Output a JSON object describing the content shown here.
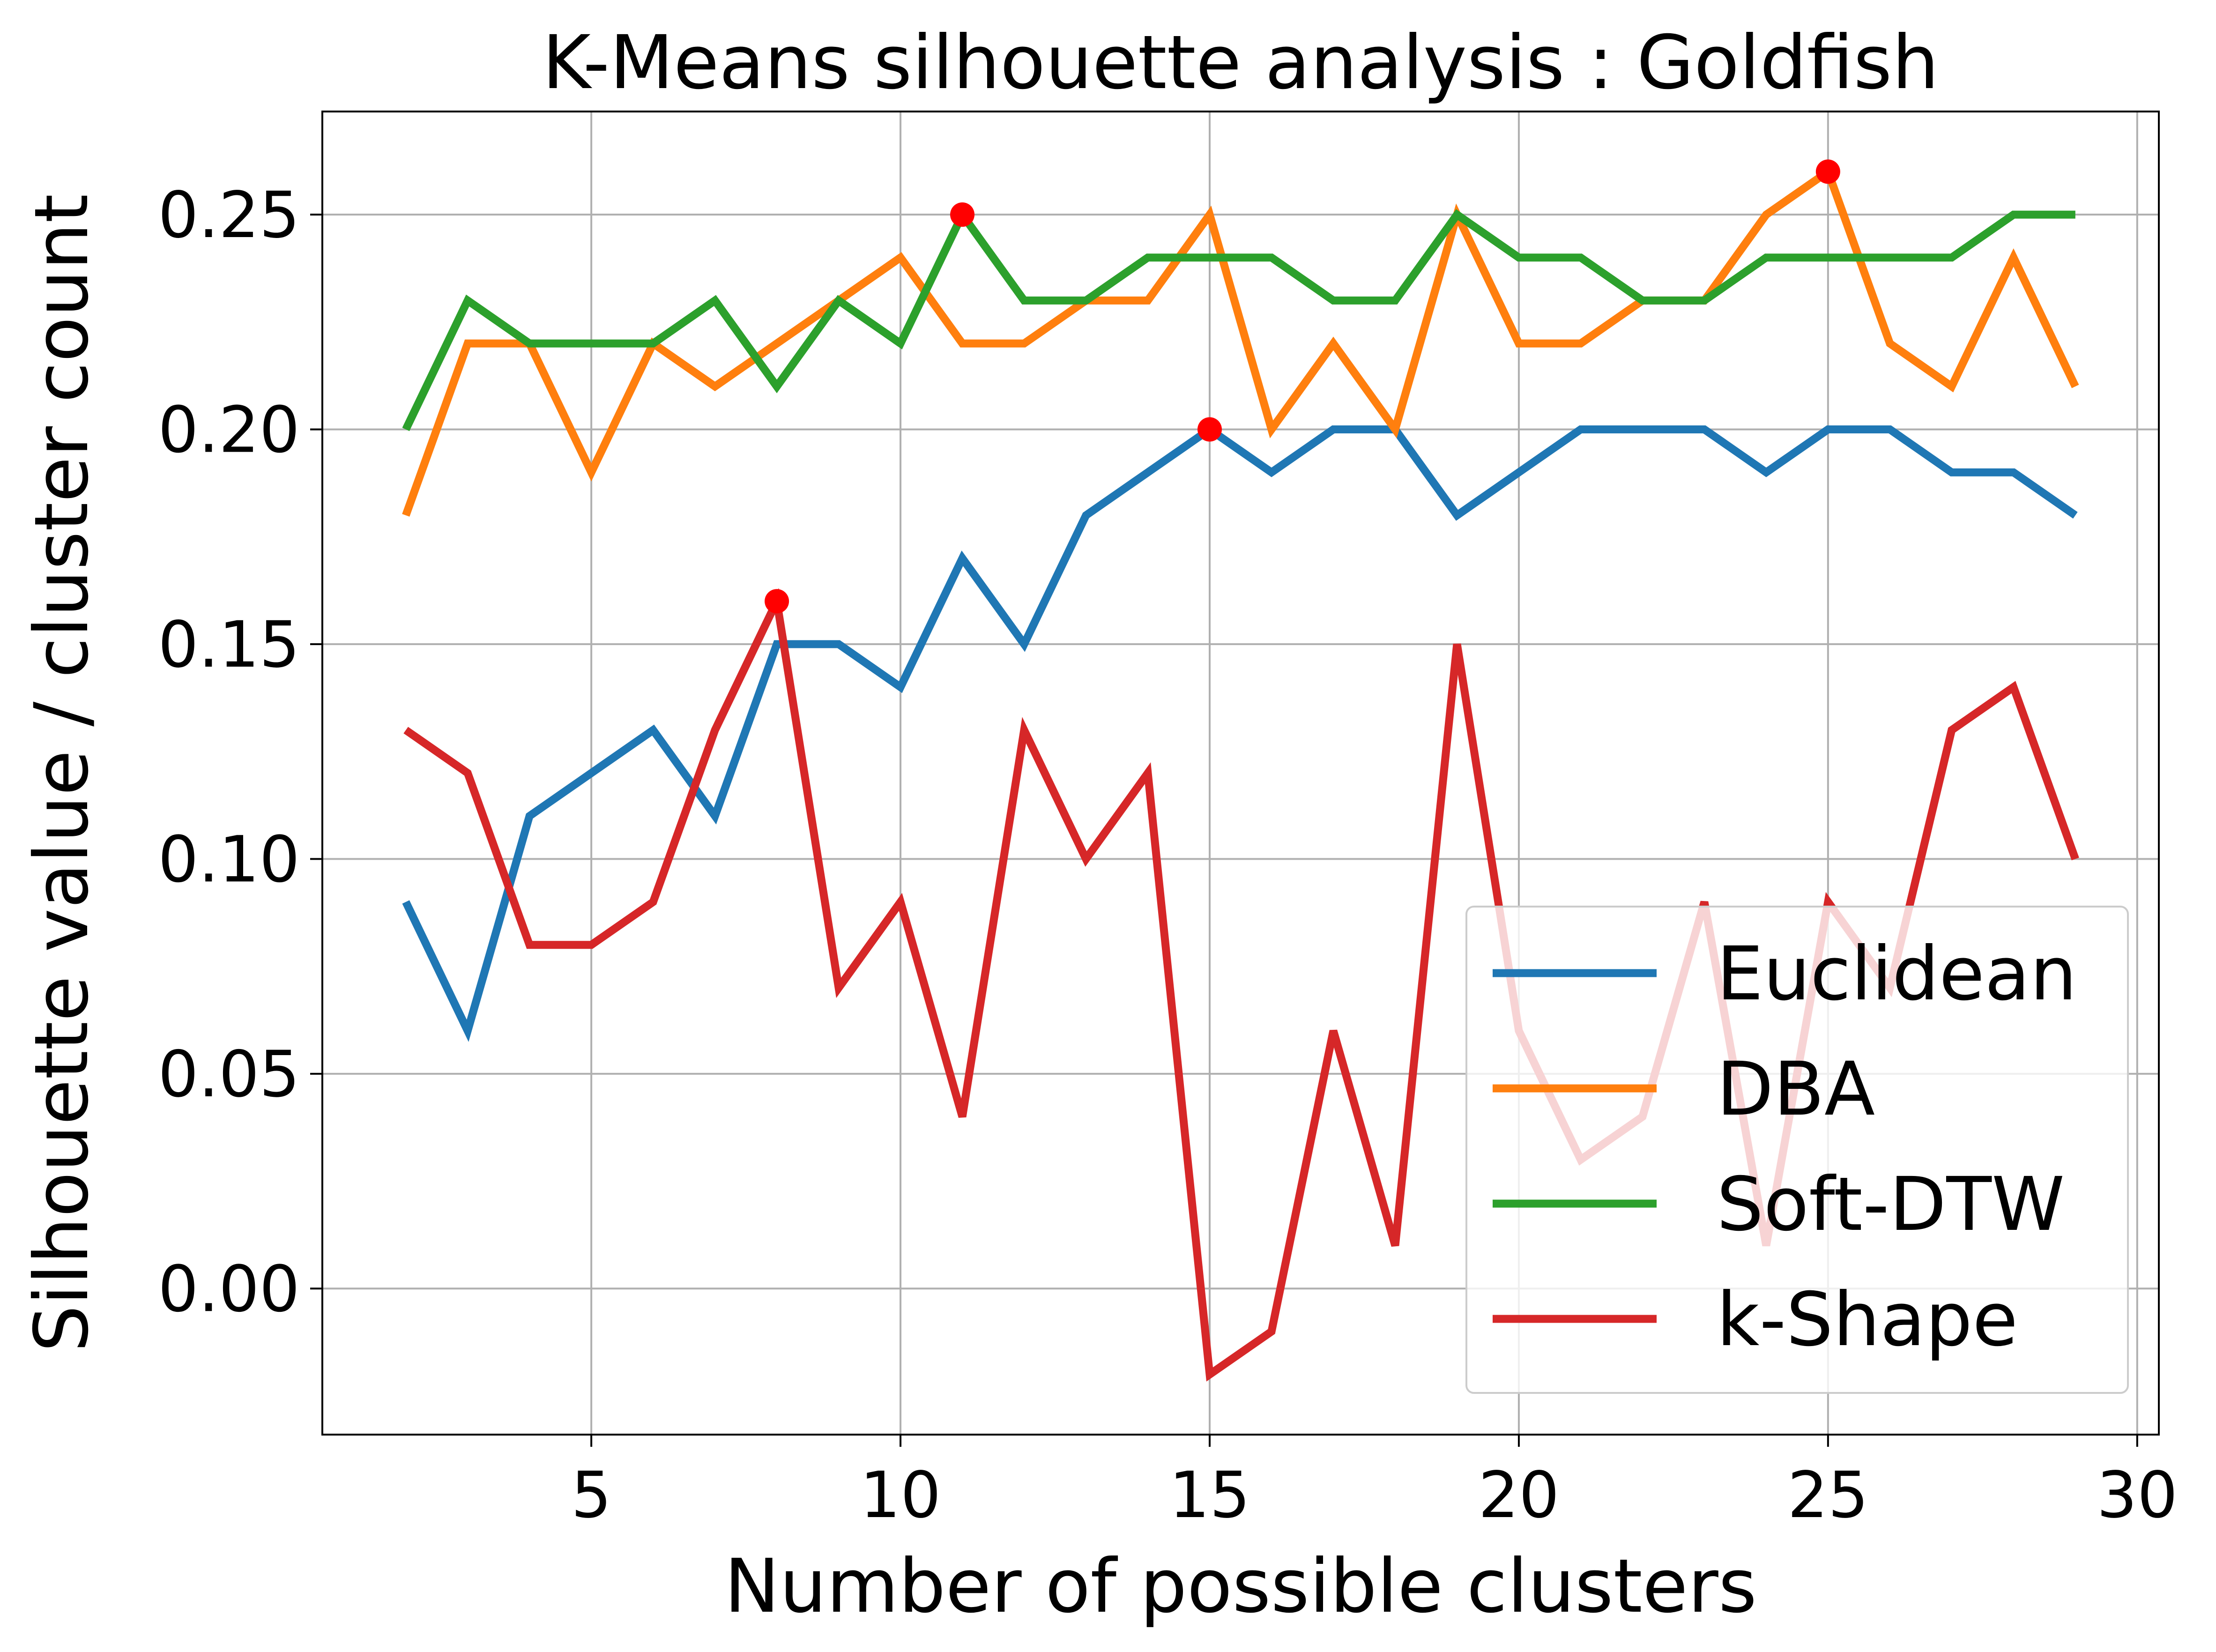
{
  "chart_data": {
    "type": "line",
    "title": "K-Means silhouette analysis : Goldfish",
    "xlabel": "Number of possible clusters",
    "ylabel": "Silhouette value / cluster count",
    "xlim": [
      0.65,
      30.35
    ],
    "ylim": [
      -0.034,
      0.274
    ],
    "xticks": [
      5,
      10,
      15,
      20,
      25,
      30
    ],
    "xtick_labels": [
      "5",
      "10",
      "15",
      "20",
      "25",
      "30"
    ],
    "yticks": [
      0.0,
      0.05,
      0.1,
      0.15,
      0.2,
      0.25
    ],
    "ytick_labels": [
      "0.00",
      "0.05",
      "0.10",
      "0.15",
      "0.20",
      "0.25"
    ],
    "grid": true,
    "legend_position": "bottom-right",
    "x": [
      2,
      3,
      4,
      5,
      6,
      7,
      8,
      9,
      10,
      11,
      12,
      13,
      14,
      15,
      16,
      17,
      18,
      19,
      20,
      21,
      22,
      23,
      24,
      25,
      26,
      27,
      28,
      29
    ],
    "series": [
      {
        "name": "Euclidean",
        "color": "#1f77b4",
        "values": [
          0.09,
          0.06,
          0.11,
          0.12,
          0.13,
          0.11,
          0.15,
          0.15,
          0.14,
          0.17,
          0.15,
          0.18,
          0.19,
          0.2,
          0.19,
          0.2,
          0.2,
          0.18,
          0.19,
          0.2,
          0.2,
          0.2,
          0.19,
          0.2,
          0.2,
          0.19,
          0.19,
          0.18
        ],
        "max_marker": {
          "x": 15,
          "y": 0.2
        }
      },
      {
        "name": "DBA",
        "color": "#ff7f0e",
        "values": [
          0.18,
          0.22,
          0.22,
          0.19,
          0.22,
          0.21,
          0.22,
          0.23,
          0.24,
          0.22,
          0.22,
          0.23,
          0.23,
          0.25,
          0.2,
          0.22,
          0.2,
          0.25,
          0.22,
          0.22,
          0.23,
          0.23,
          0.25,
          0.26,
          0.22,
          0.21,
          0.24,
          0.21
        ],
        "max_marker": {
          "x": 25,
          "y": 0.26
        }
      },
      {
        "name": "Soft-DTW",
        "color": "#2ca02c",
        "values": [
          0.2,
          0.23,
          0.22,
          0.22,
          0.22,
          0.23,
          0.21,
          0.23,
          0.22,
          0.25,
          0.23,
          0.23,
          0.24,
          0.24,
          0.24,
          0.23,
          0.23,
          0.25,
          0.24,
          0.24,
          0.23,
          0.23,
          0.24,
          0.24,
          0.24,
          0.24,
          0.25,
          0.25
        ],
        "max_marker": {
          "x": 11,
          "y": 0.25
        }
      },
      {
        "name": "k-Shape",
        "color": "#d62728",
        "values": [
          0.13,
          0.12,
          0.08,
          0.08,
          0.09,
          0.13,
          0.16,
          0.07,
          0.09,
          0.04,
          0.13,
          0.1,
          0.12,
          -0.02,
          -0.01,
          0.06,
          0.01,
          0.15,
          0.06,
          0.03,
          0.04,
          0.09,
          0.01,
          0.09,
          0.07,
          0.13,
          0.14,
          0.1
        ],
        "max_marker": {
          "x": 8,
          "y": 0.16
        }
      }
    ],
    "marker_color": "#ff0000"
  }
}
